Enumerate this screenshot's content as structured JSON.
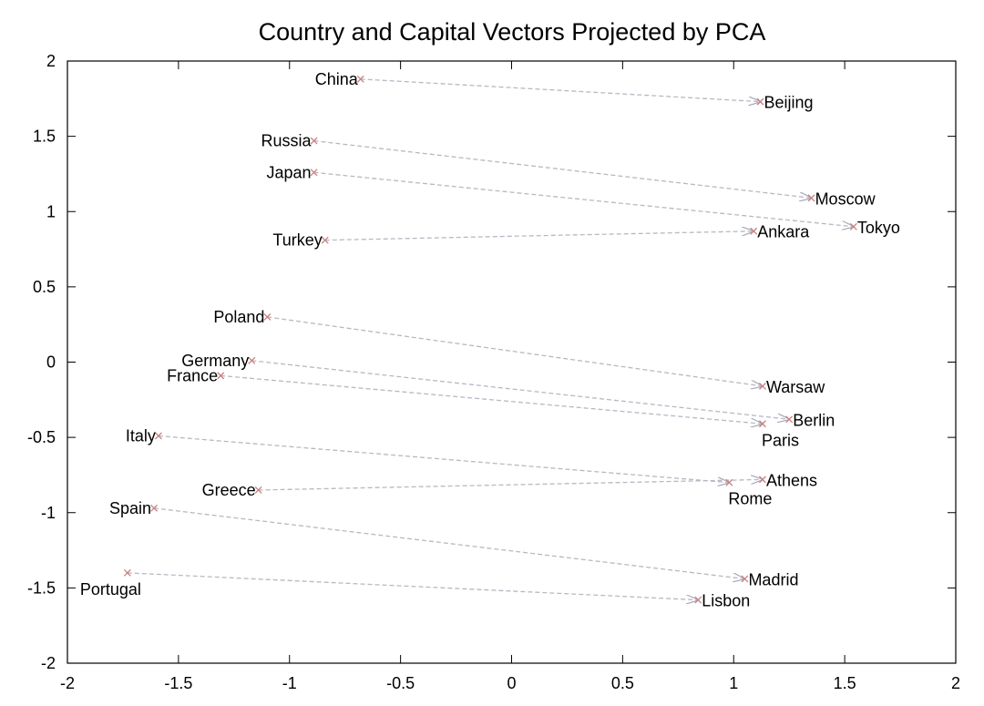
{
  "chart_data": {
    "type": "scatter",
    "title": "Country and Capital Vectors Projected by PCA",
    "xlabel": "",
    "ylabel": "",
    "xlim": [
      -2,
      2
    ],
    "ylim": [
      -2,
      2
    ],
    "x_ticks": [
      -2,
      -1.5,
      -1,
      -0.5,
      0,
      0.5,
      1,
      1.5,
      2
    ],
    "x_tick_labels": [
      "-2",
      "-1.5",
      "-1",
      "-0.5",
      "0",
      "0.5",
      "1",
      "1.5",
      "2"
    ],
    "y_ticks": [
      2,
      1.5,
      1,
      0.5,
      0,
      -0.5,
      -1,
      -1.5,
      -2
    ],
    "y_tick_labels": [
      "2",
      "1.5",
      "1",
      "0.5",
      "0",
      "-0.5",
      "-1",
      "-1.5",
      "-2"
    ],
    "grid": false,
    "marker_color": "#c98080",
    "arrow_color": "#b8b8c4",
    "pairs": [
      {
        "country": "China",
        "country_xy": [
          -0.68,
          1.88
        ],
        "capital": "Beijing",
        "capital_xy": [
          1.12,
          1.73
        ],
        "label_anchor": {
          "country": "end",
          "capital": "start"
        }
      },
      {
        "country": "Russia",
        "country_xy": [
          -0.89,
          1.47
        ],
        "capital": "Moscow",
        "capital_xy": [
          1.35,
          1.09
        ],
        "label_anchor": {
          "country": "end",
          "capital": "start"
        }
      },
      {
        "country": "Japan",
        "country_xy": [
          -0.89,
          1.26
        ],
        "capital": "Tokyo",
        "capital_xy": [
          1.54,
          0.9
        ],
        "label_anchor": {
          "country": "end",
          "capital": "start"
        }
      },
      {
        "country": "Turkey",
        "country_xy": [
          -0.84,
          0.81
        ],
        "capital": "Ankara",
        "capital_xy": [
          1.09,
          0.87
        ],
        "label_anchor": {
          "country": "end",
          "capital": "start"
        }
      },
      {
        "country": "Poland",
        "country_xy": [
          -1.1,
          0.3
        ],
        "capital": "Warsaw",
        "capital_xy": [
          1.13,
          -0.16
        ],
        "label_anchor": {
          "country": "end",
          "capital": "start"
        }
      },
      {
        "country": "Germany",
        "country_xy": [
          -1.17,
          0.01
        ],
        "capital": "Berlin",
        "capital_xy": [
          1.25,
          -0.38
        ],
        "label_anchor": {
          "country": "end",
          "capital": "start"
        }
      },
      {
        "country": "France",
        "country_xy": [
          -1.31,
          -0.09
        ],
        "capital": "Paris",
        "capital_xy": [
          1.13,
          -0.41
        ],
        "label_anchor": {
          "country": "end",
          "capital": "start"
        }
      },
      {
        "country": "Italy",
        "country_xy": [
          -1.59,
          -0.49
        ],
        "capital": "Rome",
        "capital_xy": [
          0.98,
          -0.8
        ],
        "label_anchor": {
          "country": "end",
          "capital": "start"
        }
      },
      {
        "country": "Greece",
        "country_xy": [
          -1.14,
          -0.85
        ],
        "capital": "Athens",
        "capital_xy": [
          1.13,
          -0.78
        ],
        "label_anchor": {
          "country": "end",
          "capital": "start"
        }
      },
      {
        "country": "Spain",
        "country_xy": [
          -1.61,
          -0.97
        ],
        "capital": "Madrid",
        "capital_xy": [
          1.05,
          -1.44
        ],
        "label_anchor": {
          "country": "end",
          "capital": "start"
        }
      },
      {
        "country": "Portugal",
        "country_xy": [
          -1.73,
          -1.4
        ],
        "capital": "Lisbon",
        "capital_xy": [
          0.84,
          -1.58
        ],
        "label_anchor": {
          "country": "start",
          "capital": "start"
        }
      }
    ]
  }
}
